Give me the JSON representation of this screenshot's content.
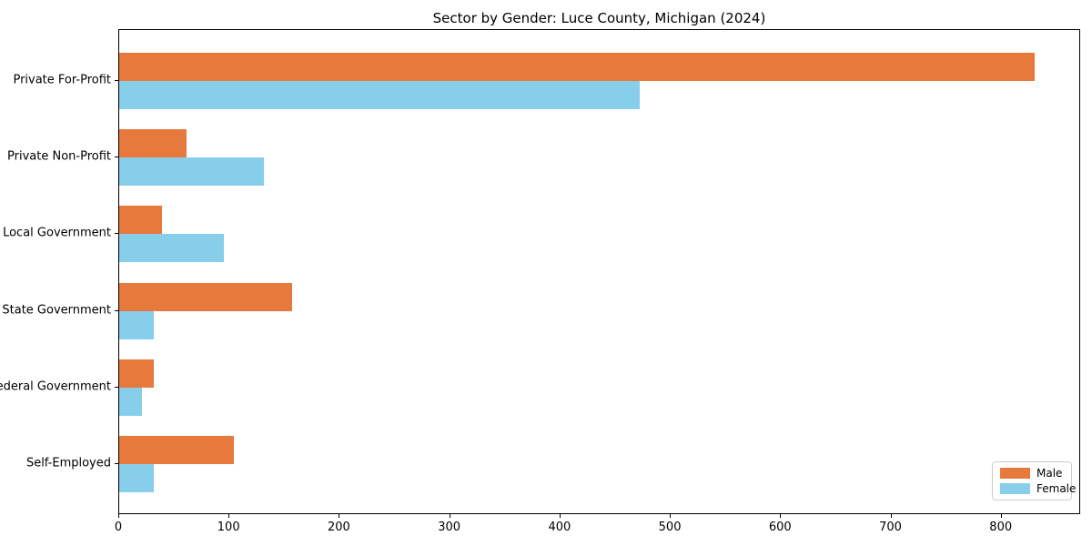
{
  "chart_data": {
    "type": "bar",
    "orientation": "horizontal",
    "title": "Sector by Gender: Luce County, Michigan (2024)",
    "categories": [
      "Private For-Profit",
      "Private Non-Profit",
      "Local Government",
      "State Government",
      "Federal Government",
      "Self-Employed"
    ],
    "series": [
      {
        "name": "Male",
        "color": "#E8793C",
        "values": [
          830,
          61,
          39,
          157,
          31,
          104
        ]
      },
      {
        "name": "Female",
        "color": "#87CEEB",
        "values": [
          472,
          131,
          95,
          31,
          21,
          31
        ]
      }
    ],
    "xlabel": "",
    "ylabel": "",
    "xlim": [
      0,
      872
    ],
    "xticks": [
      0,
      100,
      200,
      300,
      400,
      500,
      600,
      700,
      800
    ],
    "grid": false,
    "legend_position": "lower right",
    "background_color": "#ffffff",
    "axis_color": "#000000"
  }
}
